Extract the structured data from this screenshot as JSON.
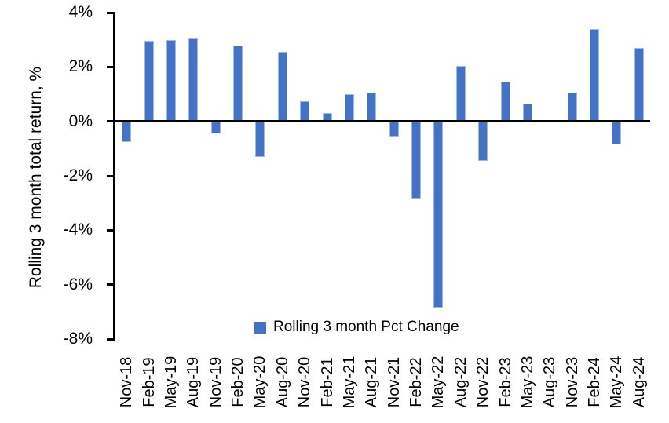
{
  "chart_data": {
    "type": "bar",
    "title": "",
    "xlabel": "",
    "ylabel": "Rolling 3 month total return, %",
    "legend": "Rolling 3 month Pct Change",
    "legend_position": "bottom-center",
    "grid": false,
    "bar_color": "#4472C4",
    "bar_edge_color": "#9DB9E4",
    "axis_color": "#000000",
    "ylim": [
      -8,
      4
    ],
    "ytick_values": [
      4,
      2,
      0,
      -2,
      -4,
      -6,
      -8
    ],
    "ytick_labels": [
      "4%",
      "2%",
      "0%",
      "-2%",
      "-4%",
      "-6%",
      "-8%"
    ],
    "categories": [
      "Nov-18",
      "Feb-19",
      "May-19",
      "Aug-19",
      "Nov-19",
      "Feb-20",
      "May-20",
      "Aug-20",
      "Nov-20",
      "Feb-21",
      "May-21",
      "Aug-21",
      "Nov-21",
      "Feb-22",
      "May-22",
      "Aug-22",
      "Nov-22",
      "Feb-23",
      "May-23",
      "Aug-23",
      "Nov-23",
      "Feb-24",
      "May-24",
      "Aug-24"
    ],
    "values": [
      -0.75,
      2.95,
      3.0,
      3.05,
      -0.45,
      2.8,
      -1.3,
      2.55,
      0.75,
      0.3,
      1.0,
      1.05,
      -0.55,
      -2.85,
      -6.85,
      2.05,
      -1.45,
      1.45,
      0.65,
      0,
      1.05,
      3.4,
      -0.85,
      2.7
    ]
  }
}
